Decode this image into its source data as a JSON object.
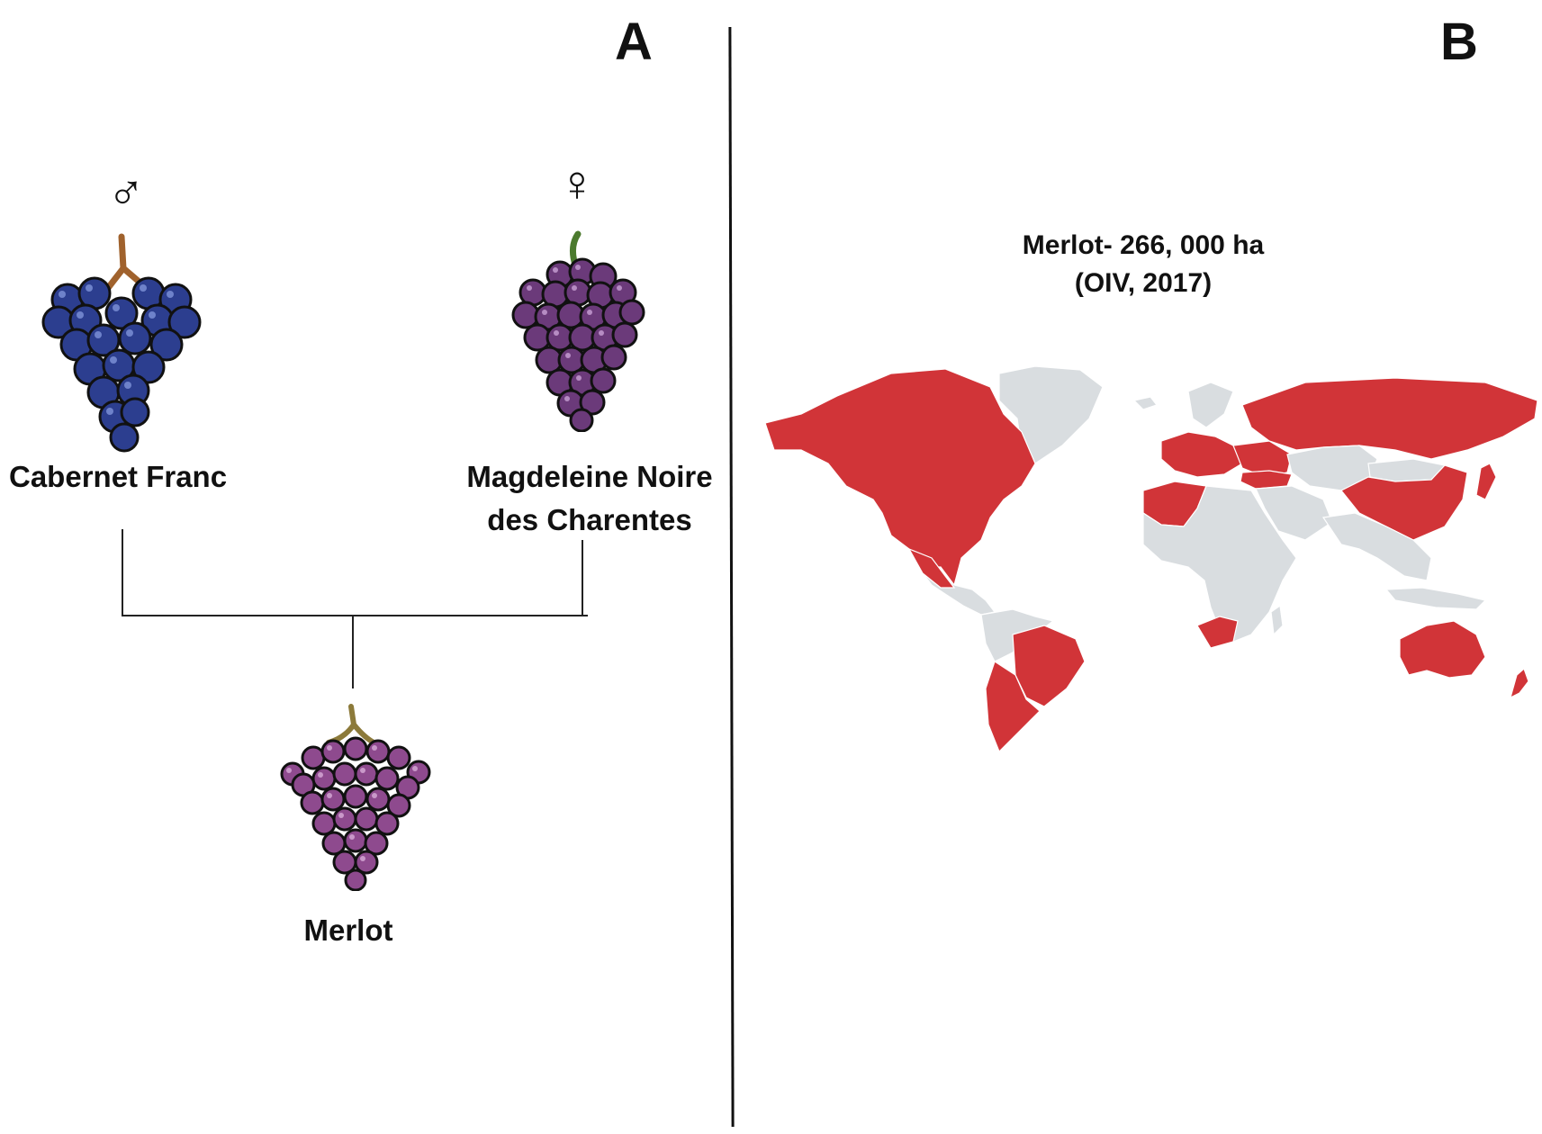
{
  "panels": {
    "a": "A",
    "b": "B"
  },
  "pedigree": {
    "parent_male": {
      "name": "Cabernet Franc",
      "symbol": "♂"
    },
    "parent_female": {
      "name_line1": "Magdeleine Noire",
      "name_line2": "des Charentes",
      "symbol": "♀"
    },
    "offspring": {
      "name": "Merlot"
    }
  },
  "map": {
    "title_line1": "Merlot- 266, 000 ha",
    "title_line2": "(OIV, 2017)",
    "colors": {
      "growing": "#d13438",
      "other": "#d9dde0",
      "border": "#ffffff"
    }
  },
  "grape_colors": {
    "cabernet_franc": "#2c3e8f",
    "magdeleine": "#6b3a7a",
    "merlot": "#8e4a8e"
  }
}
